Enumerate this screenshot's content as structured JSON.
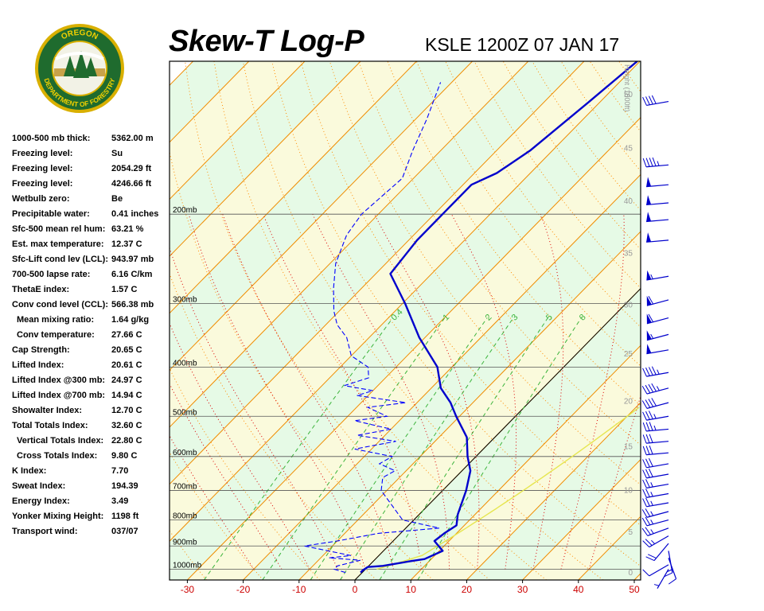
{
  "header": {
    "title": "Skew-T Log-P",
    "station_time": "KSLE 1200Z 07 JAN 17"
  },
  "logo": {
    "text_top": "OREGON",
    "text_bottom": "DEPARTMENT OF FORESTRY"
  },
  "indices": [
    {
      "label": "1000-500 mb thick:",
      "value": "5362.00 m"
    },
    {
      "label": "Freezing level:",
      "value": "Su"
    },
    {
      "label": "Freezing level:",
      "value": "2054.29 ft"
    },
    {
      "label": "Freezing level:",
      "value": "4246.66 ft"
    },
    {
      "label": "Wetbulb zero:",
      "value": "Be"
    },
    {
      "label": "Precipitable water:",
      "value": "0.41 inches"
    },
    {
      "label": "Sfc-500 mean rel hum:",
      "value": "63.21 %"
    },
    {
      "label": "Est. max temperature:",
      "value": "12.37 C"
    },
    {
      "label": "Sfc-Lift cond lev (LCL):",
      "value": "943.97 mb"
    },
    {
      "label": "700-500 lapse rate:",
      "value": "6.16 C/km"
    },
    {
      "label": "ThetaE index:",
      "value": "1.57 C"
    },
    {
      "label": "Conv cond level (CCL):",
      "value": "566.38 mb"
    },
    {
      "label": "Mean mixing ratio:",
      "value": "1.64 g/kg",
      "indent": true
    },
    {
      "label": "Conv temperature:",
      "value": "27.66 C",
      "indent": true
    },
    {
      "label": "Cap Strength:",
      "value": "20.65 C"
    },
    {
      "label": "Lifted Index:",
      "value": "20.61 C"
    },
    {
      "label": "Lifted Index @300 mb:",
      "value": "24.97 C"
    },
    {
      "label": "Lifted Index @700 mb:",
      "value": "14.94 C"
    },
    {
      "label": "Showalter Index:",
      "value": "12.70 C"
    },
    {
      "label": "Total Totals Index:",
      "value": "32.60 C"
    },
    {
      "label": "Vertical Totals Index:",
      "value": "22.80 C",
      "indent": true
    },
    {
      "label": "Cross Totals Index:",
      "value": "9.80 C",
      "indent": true
    },
    {
      "label": "K Index:",
      "value": "7.70"
    },
    {
      "label": "Sweat Index:",
      "value": "194.39"
    },
    {
      "label": "Energy Index:",
      "value": "3.49"
    },
    {
      "label": "Yonker Mixing Height:",
      "value": "1198 ft"
    },
    {
      "label": "Transport wind:",
      "value": "037/07"
    }
  ],
  "colors": {
    "background": "#ffffff",
    "plot_bg_green": "#e6fae6",
    "plot_bg_yellow": "#fafadc",
    "isotherm": "#f08c00",
    "dry_adiabat": "#ff8c00",
    "moist_adiabat": "#dc0000",
    "mixing_ratio": "#3cb43c",
    "temperature": "#0000cc",
    "dewpoint": "#0000ff",
    "parcel": "#e6e650",
    "barb": "#0000cc",
    "axis_label": "#cc0000",
    "height_label": "#999999"
  },
  "chart_data": {
    "type": "skew-t",
    "x_axis": {
      "unit": "C",
      "ticks": [
        "-30",
        "-20",
        "-10",
        "0",
        "10",
        "20",
        "30",
        "40",
        "50"
      ],
      "range": [
        -32,
        50
      ]
    },
    "y_axis": {
      "scale": "log-pressure",
      "range_mb": [
        1050,
        100
      ],
      "pressure_labels": [
        {
          "p": 200,
          "label": "200mb"
        },
        {
          "p": 300,
          "label": "300mb"
        },
        {
          "p": 400,
          "label": "400mb"
        },
        {
          "p": 500,
          "label": "500mb"
        },
        {
          "p": 600,
          "label": "600mb"
        },
        {
          "p": 700,
          "label": "700mb"
        },
        {
          "p": 800,
          "label": "800mb"
        },
        {
          "p": 900,
          "label": "900mb"
        },
        {
          "p": 1000,
          "label": "1000mb"
        }
      ]
    },
    "height_axis": {
      "title": "Height (1000ft)",
      "ticks": [
        {
          "p": 1013,
          "label": "0"
        },
        {
          "p": 843,
          "label": "5"
        },
        {
          "p": 697,
          "label": "10"
        },
        {
          "p": 572,
          "label": "15"
        },
        {
          "p": 466,
          "label": "20"
        },
        {
          "p": 376,
          "label": "25"
        },
        {
          "p": 301,
          "label": "30"
        },
        {
          "p": 238,
          "label": "35"
        },
        {
          "p": 188,
          "label": "40"
        },
        {
          "p": 148,
          "label": "45"
        },
        {
          "p": 116,
          "label": "50"
        }
      ]
    },
    "mixing_ratio_labels": [
      {
        "w": 0.4,
        "label": "0.4"
      },
      {
        "w": 1,
        "label": "1"
      },
      {
        "w": 2,
        "label": "2"
      },
      {
        "w": 3,
        "label": "3"
      },
      {
        "w": 5,
        "label": "5"
      },
      {
        "w": 8,
        "label": "8"
      }
    ],
    "temperature": [
      {
        "p": 1015,
        "t": -0.3
      },
      {
        "p": 1005,
        "t": -0.3
      },
      {
        "p": 990,
        "t": 0.0
      },
      {
        "p": 985,
        "t": 2.5
      },
      {
        "p": 965,
        "t": 6.5
      },
      {
        "p": 955,
        "t": 8.8
      },
      {
        "p": 920,
        "t": 10.6
      },
      {
        "p": 900,
        "t": 9.0
      },
      {
        "p": 880,
        "t": 7.4
      },
      {
        "p": 850,
        "t": 7.8
      },
      {
        "p": 820,
        "t": 8.6
      },
      {
        "p": 780,
        "t": 6.9
      },
      {
        "p": 700,
        "t": 4.2
      },
      {
        "p": 640,
        "t": 1.5
      },
      {
        "p": 600,
        "t": -1.5
      },
      {
        "p": 550,
        "t": -5.0
      },
      {
        "p": 500,
        "t": -10.6
      },
      {
        "p": 470,
        "t": -14.0
      },
      {
        "p": 440,
        "t": -18.3
      },
      {
        "p": 420,
        "t": -20.4
      },
      {
        "p": 400,
        "t": -22.6
      },
      {
        "p": 350,
        "t": -31.0
      },
      {
        "p": 300,
        "t": -39.5
      },
      {
        "p": 262,
        "t": -47.4
      },
      {
        "p": 225,
        "t": -48.5
      },
      {
        "p": 200,
        "t": -48.5
      },
      {
        "p": 175,
        "t": -48.5
      },
      {
        "p": 166,
        "t": -46.0
      },
      {
        "p": 150,
        "t": -44.0
      },
      {
        "p": 120,
        "t": -42.0
      },
      {
        "p": 100,
        "t": -40.5
      }
    ],
    "dewpoint": [
      {
        "p": 1015,
        "t": -3.0
      },
      {
        "p": 1000,
        "t": -5.6
      },
      {
        "p": 985,
        "t": -5.6
      },
      {
        "p": 960,
        "t": -2.5
      },
      {
        "p": 950,
        "t": -8.5
      },
      {
        "p": 940,
        "t": -5.0
      },
      {
        "p": 900,
        "t": -15.0
      },
      {
        "p": 880,
        "t": -10.0
      },
      {
        "p": 850,
        "t": -4.0
      },
      {
        "p": 830,
        "t": 6.0
      },
      {
        "p": 800,
        "t": -2.0
      },
      {
        "p": 700,
        "t": -11.0
      },
      {
        "p": 660,
        "t": -13.0
      },
      {
        "p": 640,
        "t": -12.0
      },
      {
        "p": 620,
        "t": -16.0
      },
      {
        "p": 600,
        "t": -15.0
      },
      {
        "p": 580,
        "t": -23.0
      },
      {
        "p": 560,
        "t": -17.0
      },
      {
        "p": 545,
        "t": -25.0
      },
      {
        "p": 530,
        "t": -20.0
      },
      {
        "p": 510,
        "t": -28.0
      },
      {
        "p": 500,
        "t": -23.0
      },
      {
        "p": 480,
        "t": -28.0
      },
      {
        "p": 470,
        "t": -22.0
      },
      {
        "p": 455,
        "t": -32.0
      },
      {
        "p": 445,
        "t": -30.0
      },
      {
        "p": 435,
        "t": -36.0
      },
      {
        "p": 420,
        "t": -33.0
      },
      {
        "p": 400,
        "t": -35.0
      },
      {
        "p": 380,
        "t": -40.0
      },
      {
        "p": 350,
        "t": -44.0
      },
      {
        "p": 330,
        "t": -48.0
      },
      {
        "p": 310,
        "t": -51.0
      },
      {
        "p": 280,
        "t": -55.0
      },
      {
        "p": 250,
        "t": -59.0
      },
      {
        "p": 220,
        "t": -62.0
      },
      {
        "p": 200,
        "t": -63.0
      },
      {
        "p": 170,
        "t": -62.0
      },
      {
        "p": 150,
        "t": -65.0
      },
      {
        "p": 130,
        "t": -68.0
      },
      {
        "p": 110,
        "t": -72.0
      }
    ],
    "wind_barbs": [
      {
        "p": 1000,
        "dir": 210,
        "speed": 5
      },
      {
        "p": 980,
        "dir": 240,
        "speed": 10
      },
      {
        "p": 950,
        "dir": 160,
        "speed": 10
      },
      {
        "p": 920,
        "dir": 170,
        "speed": 15
      },
      {
        "p": 890,
        "dir": 220,
        "speed": 20
      },
      {
        "p": 860,
        "dir": 240,
        "speed": 25
      },
      {
        "p": 830,
        "dir": 250,
        "speed": 25
      },
      {
        "p": 800,
        "dir": 255,
        "speed": 25
      },
      {
        "p": 770,
        "dir": 255,
        "speed": 25
      },
      {
        "p": 740,
        "dir": 260,
        "speed": 25
      },
      {
        "p": 710,
        "dir": 260,
        "speed": 25
      },
      {
        "p": 680,
        "dir": 260,
        "speed": 25
      },
      {
        "p": 650,
        "dir": 260,
        "speed": 30
      },
      {
        "p": 620,
        "dir": 260,
        "speed": 30
      },
      {
        "p": 590,
        "dir": 265,
        "speed": 30
      },
      {
        "p": 560,
        "dir": 265,
        "speed": 30
      },
      {
        "p": 530,
        "dir": 265,
        "speed": 35
      },
      {
        "p": 500,
        "dir": 260,
        "speed": 35
      },
      {
        "p": 470,
        "dir": 255,
        "speed": 40
      },
      {
        "p": 440,
        "dir": 255,
        "speed": 45
      },
      {
        "p": 410,
        "dir": 260,
        "speed": 45
      },
      {
        "p": 370,
        "dir": 260,
        "speed": 50
      },
      {
        "p": 345,
        "dir": 255,
        "speed": 55
      },
      {
        "p": 320,
        "dir": 255,
        "speed": 60
      },
      {
        "p": 295,
        "dir": 255,
        "speed": 60
      },
      {
        "p": 265,
        "dir": 260,
        "speed": 55
      },
      {
        "p": 225,
        "dir": 265,
        "speed": 50
      },
      {
        "p": 205,
        "dir": 265,
        "speed": 50
      },
      {
        "p": 190,
        "dir": 265,
        "speed": 50
      },
      {
        "p": 175,
        "dir": 265,
        "speed": 50
      },
      {
        "p": 160,
        "dir": 265,
        "speed": 45
      },
      {
        "p": 120,
        "dir": 260,
        "speed": 40
      }
    ]
  }
}
